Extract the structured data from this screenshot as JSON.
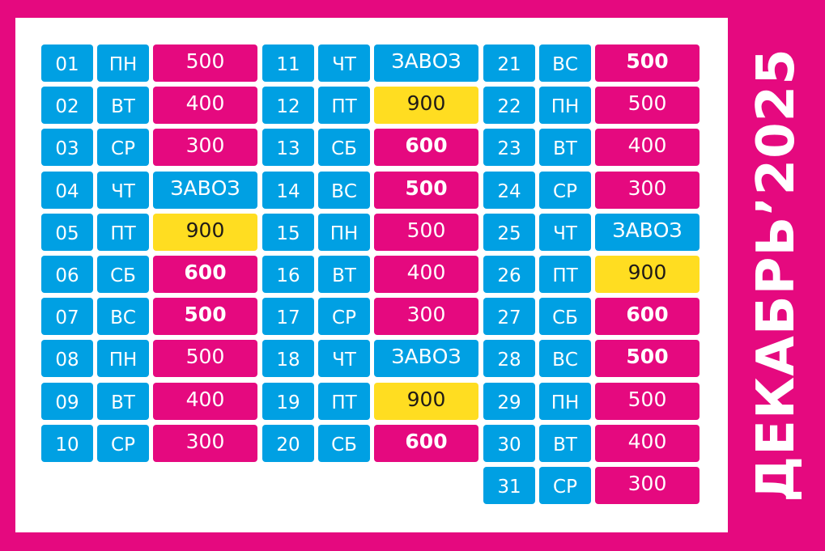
{
  "title": "ДЕКАБРЬ’2025",
  "colors": {
    "background": "#e5097f",
    "panel": "#ffffff",
    "pink": "#e5097f",
    "blue": "#00a0e3",
    "yellow": "#ffdd21"
  },
  "columns": [
    [
      {
        "num": "01",
        "day": "ПН",
        "value": "500",
        "type": "pink",
        "bold": false
      },
      {
        "num": "02",
        "day": "ВТ",
        "value": "400",
        "type": "pink",
        "bold": false
      },
      {
        "num": "03",
        "day": "СР",
        "value": "300",
        "type": "pink",
        "bold": false
      },
      {
        "num": "04",
        "day": "ЧТ",
        "value": "ЗАВОЗ",
        "type": "blue",
        "bold": false
      },
      {
        "num": "05",
        "day": "ПТ",
        "value": "900",
        "type": "yellow",
        "bold": false
      },
      {
        "num": "06",
        "day": "СБ",
        "value": "600",
        "type": "pink",
        "bold": true
      },
      {
        "num": "07",
        "day": "ВС",
        "value": "500",
        "type": "pink",
        "bold": true
      },
      {
        "num": "08",
        "day": "ПН",
        "value": "500",
        "type": "pink",
        "bold": false
      },
      {
        "num": "09",
        "day": "ВТ",
        "value": "400",
        "type": "pink",
        "bold": false
      },
      {
        "num": "10",
        "day": "СР",
        "value": "300",
        "type": "pink",
        "bold": false
      }
    ],
    [
      {
        "num": "11",
        "day": "ЧТ",
        "value": "ЗАВОЗ",
        "type": "blue",
        "bold": false
      },
      {
        "num": "12",
        "day": "ПТ",
        "value": "900",
        "type": "yellow",
        "bold": false
      },
      {
        "num": "13",
        "day": "СБ",
        "value": "600",
        "type": "pink",
        "bold": true
      },
      {
        "num": "14",
        "day": "ВС",
        "value": "500",
        "type": "pink",
        "bold": true
      },
      {
        "num": "15",
        "day": "ПН",
        "value": "500",
        "type": "pink",
        "bold": false
      },
      {
        "num": "16",
        "day": "ВТ",
        "value": "400",
        "type": "pink",
        "bold": false
      },
      {
        "num": "17",
        "day": "СР",
        "value": "300",
        "type": "pink",
        "bold": false
      },
      {
        "num": "18",
        "day": "ЧТ",
        "value": "ЗАВОЗ",
        "type": "blue",
        "bold": false
      },
      {
        "num": "19",
        "day": "ПТ",
        "value": "900",
        "type": "yellow",
        "bold": false
      },
      {
        "num": "20",
        "day": "СБ",
        "value": "600",
        "type": "pink",
        "bold": true
      }
    ],
    [
      {
        "num": "21",
        "day": "ВС",
        "value": "500",
        "type": "pink",
        "bold": true
      },
      {
        "num": "22",
        "day": "ПН",
        "value": "500",
        "type": "pink",
        "bold": false
      },
      {
        "num": "23",
        "day": "ВТ",
        "value": "400",
        "type": "pink",
        "bold": false
      },
      {
        "num": "24",
        "day": "СР",
        "value": "300",
        "type": "pink",
        "bold": false
      },
      {
        "num": "25",
        "day": "ЧТ",
        "value": "ЗАВОЗ",
        "type": "blue",
        "bold": false
      },
      {
        "num": "26",
        "day": "ПТ",
        "value": "900",
        "type": "yellow",
        "bold": false
      },
      {
        "num": "27",
        "day": "СБ",
        "value": "600",
        "type": "pink",
        "bold": true
      },
      {
        "num": "28",
        "day": "ВС",
        "value": "500",
        "type": "pink",
        "bold": true
      },
      {
        "num": "29",
        "day": "ПН",
        "value": "500",
        "type": "pink",
        "bold": false
      },
      {
        "num": "30",
        "day": "ВТ",
        "value": "400",
        "type": "pink",
        "bold": false
      },
      {
        "num": "31",
        "day": "СР",
        "value": "300",
        "type": "pink",
        "bold": false
      }
    ]
  ]
}
